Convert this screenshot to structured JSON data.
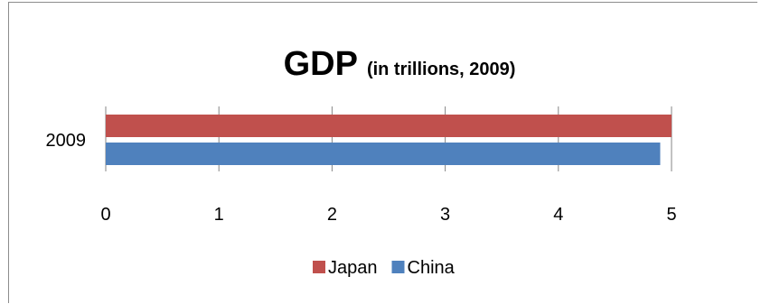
{
  "chart_data": {
    "type": "bar",
    "orientation": "horizontal",
    "title": "GDP",
    "subtitle": "(in trillions, 2009)",
    "categories": [
      "2009"
    ],
    "series": [
      {
        "name": "Japan",
        "values": [
          5.0
        ],
        "color": "#C0504D"
      },
      {
        "name": "China",
        "values": [
          4.9
        ],
        "color": "#4F81BD"
      }
    ],
    "xlim": [
      0,
      5
    ],
    "x_ticks": [
      "0",
      "1",
      "2",
      "3",
      "4",
      "5"
    ],
    "grid": "vertical",
    "legend_position": "bottom"
  }
}
